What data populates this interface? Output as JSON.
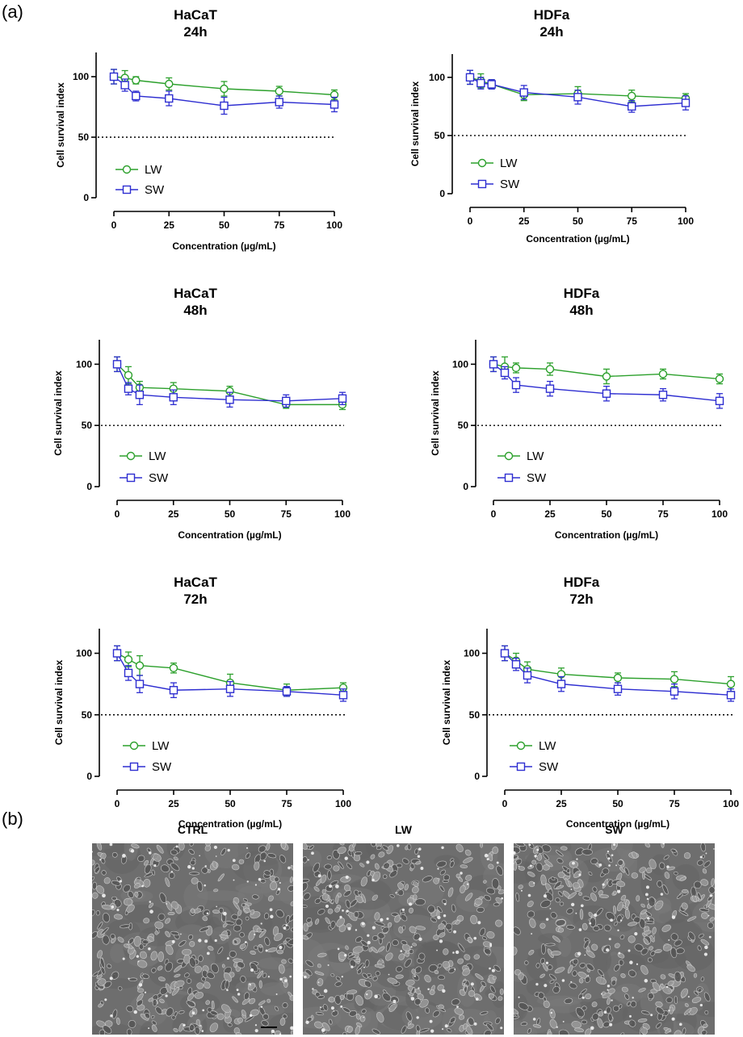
{
  "panel_a_label": "(a)",
  "panel_b_label": "(b)",
  "chart_data": [
    {
      "type": "line",
      "title_line1": "HaCaT",
      "title_line2": "24h",
      "xlabel": "Concentration (µg/mL)",
      "ylabel": "Cell survival index",
      "x": [
        0,
        5,
        10,
        25,
        50,
        75,
        100
      ],
      "xticks": [
        0,
        25,
        50,
        75,
        100
      ],
      "yticks": [
        0,
        50,
        100
      ],
      "ylim": [
        0,
        120
      ],
      "reference_line": 50,
      "legend_position": "lower-left",
      "series": [
        {
          "name": "LW",
          "marker": "circle",
          "color": "#2ca02c",
          "values": [
            100,
            99,
            97,
            94,
            90,
            88,
            85
          ],
          "errors": [
            6,
            6,
            3,
            5,
            6,
            4,
            4
          ]
        },
        {
          "name": "SW",
          "marker": "square",
          "color": "#2e2ed1",
          "values": [
            100,
            93,
            84,
            82,
            76,
            79,
            77
          ],
          "errors": [
            6,
            5,
            4,
            6,
            7,
            5,
            6
          ]
        }
      ]
    },
    {
      "type": "line",
      "title_line1": "HDFa",
      "title_line2": "24h",
      "xlabel": "Concentration (µg/mL)",
      "ylabel": "Cell survival index",
      "x": [
        0,
        5,
        10,
        25,
        50,
        75,
        100
      ],
      "xticks": [
        0,
        25,
        50,
        75,
        100
      ],
      "yticks": [
        0,
        50,
        100
      ],
      "ylim": [
        0,
        120
      ],
      "reference_line": 50,
      "legend_position": "lower-left",
      "series": [
        {
          "name": "LW",
          "marker": "circle",
          "color": "#2ca02c",
          "values": [
            100,
            97,
            94,
            85,
            86,
            84,
            82
          ],
          "errors": [
            6,
            6,
            4,
            5,
            6,
            5,
            4
          ]
        },
        {
          "name": "SW",
          "marker": "square",
          "color": "#2e2ed1",
          "values": [
            100,
            95,
            94,
            87,
            83,
            75,
            78
          ],
          "errors": [
            6,
            5,
            4,
            6,
            6,
            5,
            6
          ]
        }
      ]
    },
    {
      "type": "line",
      "title_line1": "HaCaT",
      "title_line2": "48h",
      "xlabel": "Concentration (µg/mL)",
      "ylabel": "Cell survival index",
      "x": [
        0,
        5,
        10,
        25,
        50,
        75,
        100
      ],
      "xticks": [
        0,
        25,
        50,
        75,
        100
      ],
      "yticks": [
        0,
        50,
        100
      ],
      "ylim": [
        0,
        120
      ],
      "reference_line": 50,
      "legend_position": "lower-left",
      "series": [
        {
          "name": "LW",
          "marker": "circle",
          "color": "#2ca02c",
          "values": [
            100,
            91,
            81,
            80,
            78,
            67,
            67
          ],
          "errors": [
            6,
            7,
            5,
            5,
            4,
            3,
            4
          ]
        },
        {
          "name": "SW",
          "marker": "square",
          "color": "#2e2ed1",
          "values": [
            100,
            80,
            75,
            73,
            71,
            70,
            72
          ],
          "errors": [
            6,
            5,
            8,
            6,
            6,
            5,
            5
          ]
        }
      ]
    },
    {
      "type": "line",
      "title_line1": "HDFa",
      "title_line2": "48h",
      "xlabel": "Concentration (µg/mL)",
      "ylabel": "Cell survival index",
      "x": [
        0,
        5,
        10,
        25,
        50,
        75,
        100
      ],
      "xticks": [
        0,
        25,
        50,
        75,
        100
      ],
      "yticks": [
        0,
        50,
        100
      ],
      "ylim": [
        0,
        120
      ],
      "reference_line": 50,
      "legend_position": "lower-left",
      "series": [
        {
          "name": "LW",
          "marker": "circle",
          "color": "#2ca02c",
          "values": [
            100,
            98,
            97,
            96,
            90,
            92,
            88
          ],
          "errors": [
            6,
            8,
            4,
            5,
            6,
            4,
            4
          ]
        },
        {
          "name": "SW",
          "marker": "square",
          "color": "#2e2ed1",
          "values": [
            100,
            93,
            83,
            80,
            76,
            75,
            70
          ],
          "errors": [
            6,
            5,
            6,
            6,
            6,
            5,
            6
          ]
        }
      ]
    },
    {
      "type": "line",
      "title_line1": "HaCaT",
      "title_line2": "72h",
      "xlabel": "Concentration (µg/mL)",
      "ylabel": "Cell survival index",
      "x": [
        0,
        5,
        10,
        25,
        50,
        75,
        100
      ],
      "xticks": [
        0,
        25,
        50,
        75,
        100
      ],
      "yticks": [
        0,
        50,
        100
      ],
      "ylim": [
        0,
        120
      ],
      "reference_line": 50,
      "legend_position": "lower-left",
      "series": [
        {
          "name": "LW",
          "marker": "circle",
          "color": "#2ca02c",
          "values": [
            100,
            95,
            90,
            88,
            76,
            70,
            72
          ],
          "errors": [
            6,
            6,
            8,
            4,
            7,
            5,
            4
          ]
        },
        {
          "name": "SW",
          "marker": "square",
          "color": "#2e2ed1",
          "values": [
            100,
            84,
            75,
            70,
            71,
            69,
            66
          ],
          "errors": [
            6,
            6,
            7,
            6,
            6,
            4,
            5
          ]
        }
      ]
    },
    {
      "type": "line",
      "title_line1": "HDFa",
      "title_line2": "72h",
      "xlabel": "Concentration (µg/mL)",
      "ylabel": "Cell survival index",
      "x": [
        0,
        5,
        10,
        25,
        50,
        75,
        100
      ],
      "xticks": [
        0,
        25,
        50,
        75,
        100
      ],
      "yticks": [
        0,
        50,
        100
      ],
      "ylim": [
        0,
        120
      ],
      "reference_line": 50,
      "legend_position": "lower-left",
      "series": [
        {
          "name": "LW",
          "marker": "circle",
          "color": "#2ca02c",
          "values": [
            100,
            94,
            87,
            83,
            80,
            79,
            75
          ],
          "errors": [
            6,
            6,
            6,
            5,
            4,
            6,
            6
          ]
        },
        {
          "name": "SW",
          "marker": "square",
          "color": "#2e2ed1",
          "values": [
            100,
            91,
            82,
            75,
            71,
            69,
            66
          ],
          "errors": [
            6,
            5,
            6,
            6,
            5,
            6,
            5
          ]
        }
      ]
    }
  ],
  "micrographs": [
    {
      "label": "CTRL",
      "seed": 11,
      "has_scale_bar": true
    },
    {
      "label": "LW",
      "seed": 29,
      "has_scale_bar": false
    },
    {
      "label": "SW",
      "seed": 47,
      "has_scale_bar": false
    }
  ]
}
